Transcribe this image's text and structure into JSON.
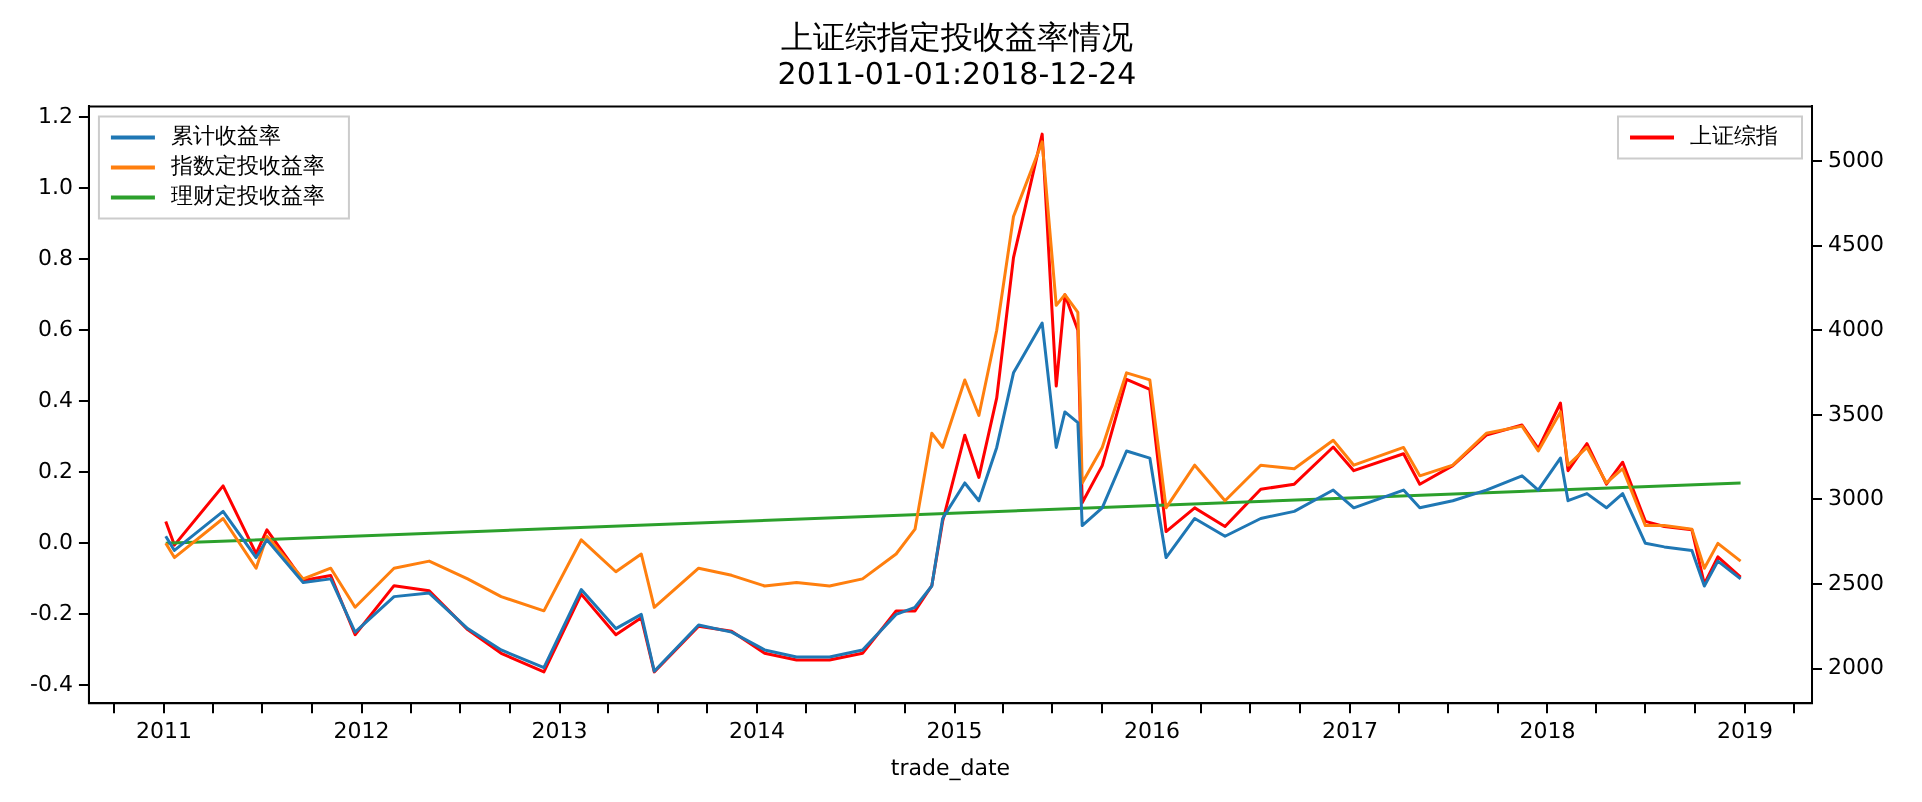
{
  "chart_data": {
    "type": "line",
    "title": "上证综指定投收益率情况",
    "subtitle": "2011-01-01:2018-12-24",
    "xlabel": "trade_date",
    "x": [
      "2011-01-04",
      "2011-01-20",
      "2011-04-20",
      "2011-06-20",
      "2011-07-10",
      "2011-09-15",
      "2011-11-05",
      "2011-12-20",
      "2012-03-01",
      "2012-05-05",
      "2012-07-15",
      "2012-09-15",
      "2012-12-03",
      "2013-02-10",
      "2013-04-15",
      "2013-06-01",
      "2013-06-25",
      "2013-09-15",
      "2013-11-15",
      "2014-01-15",
      "2014-03-15",
      "2014-05-15",
      "2014-07-15",
      "2014-09-15",
      "2014-10-20",
      "2014-11-20",
      "2014-12-10",
      "2015-01-20",
      "2015-02-15",
      "2015-03-20",
      "2015-04-20",
      "2015-06-12",
      "2015-07-08",
      "2015-07-24",
      "2015-08-17",
      "2015-08-25",
      "2015-10-01",
      "2015-11-15",
      "2015-12-28",
      "2016-01-27",
      "2016-03-20",
      "2016-05-15",
      "2016-07-20",
      "2016-09-20",
      "2016-12-01",
      "2017-01-08",
      "2017-04-10",
      "2017-05-10",
      "2017-07-10",
      "2017-09-10",
      "2017-11-15",
      "2017-12-15",
      "2018-01-25",
      "2018-02-08",
      "2018-03-15",
      "2018-04-20",
      "2018-05-20",
      "2018-07-01",
      "2018-08-05",
      "2018-09-25",
      "2018-10-18",
      "2018-11-12",
      "2018-12-24"
    ],
    "series": [
      {
        "name": "累计收益率",
        "color": "#1f77b4",
        "values": [
          0.02,
          -0.02,
          0.09,
          -0.04,
          0.01,
          -0.11,
          -0.1,
          -0.25,
          -0.15,
          -0.14,
          -0.24,
          -0.3,
          -0.35,
          -0.13,
          -0.24,
          -0.2,
          -0.36,
          -0.23,
          -0.25,
          -0.3,
          -0.32,
          -0.32,
          -0.3,
          -0.2,
          -0.18,
          -0.12,
          0.07,
          0.17,
          0.12,
          0.27,
          0.48,
          0.62,
          0.27,
          0.37,
          0.34,
          0.05,
          0.1,
          0.26,
          0.24,
          -0.04,
          0.07,
          0.02,
          0.07,
          0.09,
          0.15,
          0.1,
          0.15,
          0.1,
          0.12,
          0.15,
          0.19,
          0.15,
          0.24,
          0.12,
          0.14,
          0.1,
          0.14,
          0.0,
          -0.01,
          -0.02,
          -0.12,
          -0.05,
          -0.1
        ]
      },
      {
        "name": "指数定投收益率",
        "color": "#ff7f0e",
        "values": [
          0.0,
          -0.04,
          0.07,
          -0.07,
          0.02,
          -0.1,
          -0.07,
          -0.18,
          -0.07,
          -0.05,
          -0.1,
          -0.15,
          -0.19,
          0.01,
          -0.08,
          -0.03,
          -0.18,
          -0.07,
          -0.09,
          -0.12,
          -0.11,
          -0.12,
          -0.1,
          -0.03,
          0.04,
          0.31,
          0.27,
          0.46,
          0.36,
          0.6,
          0.92,
          1.13,
          0.67,
          0.7,
          0.65,
          0.17,
          0.27,
          0.48,
          0.46,
          0.1,
          0.22,
          0.12,
          0.22,
          0.21,
          0.29,
          0.22,
          0.27,
          0.19,
          0.22,
          0.31,
          0.33,
          0.26,
          0.37,
          0.22,
          0.27,
          0.17,
          0.21,
          0.05,
          0.05,
          0.04,
          -0.07,
          0.0,
          -0.05
        ]
      },
      {
        "name": "理财定投收益率",
        "color": "#2ca02c",
        "x": [
          "2011-01-04",
          "2018-12-24"
        ],
        "values": [
          0.0,
          0.17
        ]
      },
      {
        "name": "上证综指",
        "color": "#ff0000",
        "axis": "y2",
        "values": [
          2870,
          2730,
          3080,
          2680,
          2820,
          2520,
          2550,
          2200,
          2490,
          2460,
          2230,
          2090,
          1980,
          2440,
          2200,
          2300,
          1980,
          2250,
          2220,
          2090,
          2050,
          2050,
          2090,
          2340,
          2340,
          2490,
          2870,
          3380,
          3130,
          3600,
          4430,
          5160,
          3670,
          4210,
          4000,
          2980,
          3200,
          3710,
          3650,
          2810,
          2950,
          2840,
          3060,
          3090,
          3310,
          3170,
          3270,
          3090,
          3200,
          3380,
          3440,
          3300,
          3570,
          3170,
          3330,
          3090,
          3220,
          2870,
          2840,
          2820,
          2500,
          2660,
          2540
        ]
      }
    ],
    "xlim": [
      "2010-08-15",
      "2019-05-05"
    ],
    "xticks": [
      {
        "value": "2010-10-01",
        "label": null
      },
      {
        "value": "2011-01-01",
        "label": "2011"
      },
      {
        "value": "2011-04-01",
        "label": null
      },
      {
        "value": "2011-07-01",
        "label": null
      },
      {
        "value": "2011-10-01",
        "label": null
      },
      {
        "value": "2012-01-01",
        "label": "2012"
      },
      {
        "value": "2012-04-01",
        "label": null
      },
      {
        "value": "2012-07-01",
        "label": null
      },
      {
        "value": "2012-10-01",
        "label": null
      },
      {
        "value": "2013-01-01",
        "label": "2013"
      },
      {
        "value": "2013-04-01",
        "label": null
      },
      {
        "value": "2013-07-01",
        "label": null
      },
      {
        "value": "2013-10-01",
        "label": null
      },
      {
        "value": "2014-01-01",
        "label": "2014"
      },
      {
        "value": "2014-04-01",
        "label": null
      },
      {
        "value": "2014-07-01",
        "label": null
      },
      {
        "value": "2014-10-01",
        "label": null
      },
      {
        "value": "2015-01-01",
        "label": "2015"
      },
      {
        "value": "2015-04-01",
        "label": null
      },
      {
        "value": "2015-07-01",
        "label": null
      },
      {
        "value": "2015-10-01",
        "label": null
      },
      {
        "value": "2016-01-01",
        "label": "2016"
      },
      {
        "value": "2016-04-01",
        "label": null
      },
      {
        "value": "2016-07-01",
        "label": null
      },
      {
        "value": "2016-10-01",
        "label": null
      },
      {
        "value": "2017-01-01",
        "label": "2017"
      },
      {
        "value": "2017-04-01",
        "label": null
      },
      {
        "value": "2017-07-01",
        "label": null
      },
      {
        "value": "2017-10-01",
        "label": null
      },
      {
        "value": "2018-01-01",
        "label": "2018"
      },
      {
        "value": "2018-04-01",
        "label": null
      },
      {
        "value": "2018-07-01",
        "label": null
      },
      {
        "value": "2018-10-01",
        "label": null
      },
      {
        "value": "2019-01-01",
        "label": "2019"
      },
      {
        "value": "2019-04-01",
        "label": null
      }
    ],
    "ylim": [
      -0.45,
      1.23
    ],
    "yticks": [
      -0.4,
      -0.2,
      {
        "value": 0,
        "label": "0.0"
      },
      0.2,
      0.4,
      0.6,
      0.8,
      {
        "value": 1,
        "label": "1.0"
      },
      1.2
    ],
    "y2lim": [
      1795,
      5324
    ],
    "y2ticks": [
      2000,
      2500,
      3000,
      3500,
      4000,
      4500,
      5000
    ],
    "legend": "top left",
    "marker": "none",
    "line_style": "solid",
    "grid": false
  }
}
